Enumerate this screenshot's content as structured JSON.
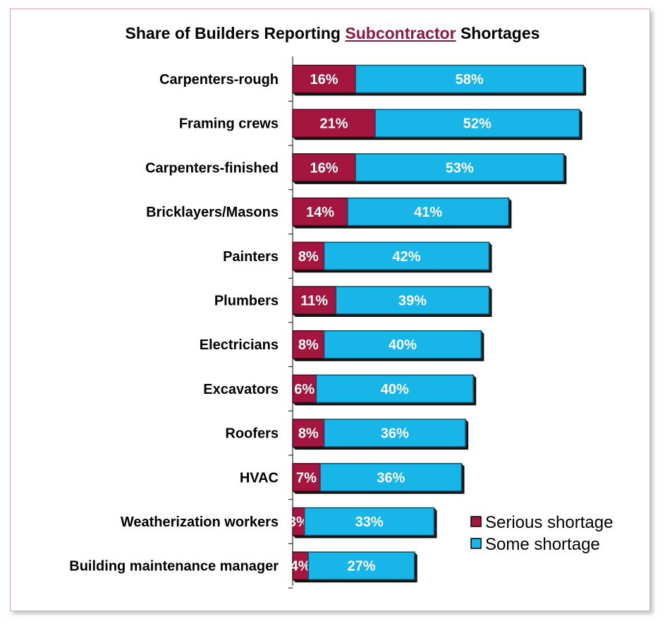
{
  "chart_data": {
    "type": "bar",
    "orientation": "horizontal",
    "stacked": true,
    "title": {
      "prefix": "Share of Builders Reporting ",
      "highlight": "Subcontractor",
      "suffix": " Shortages"
    },
    "categories": [
      "Carpenters-rough",
      "Framing crews",
      "Carpenters-finished",
      "Bricklayers/Masons",
      "Painters",
      "Plumbers",
      "Electricians",
      "Excavators",
      "Roofers",
      "HVAC",
      "Weatherization workers",
      "Building maintenance manager"
    ],
    "series": [
      {
        "name": "Serious shortage",
        "color": "#a3163f",
        "values": [
          16,
          21,
          16,
          14,
          8,
          11,
          8,
          6,
          8,
          7,
          3,
          4
        ]
      },
      {
        "name": "Some shortage",
        "color": "#17b5e8",
        "values": [
          58,
          52,
          53,
          41,
          42,
          39,
          40,
          40,
          36,
          36,
          33,
          27
        ]
      }
    ],
    "value_suffix": "%",
    "legend_position": "bottom-right",
    "grid": false
  }
}
